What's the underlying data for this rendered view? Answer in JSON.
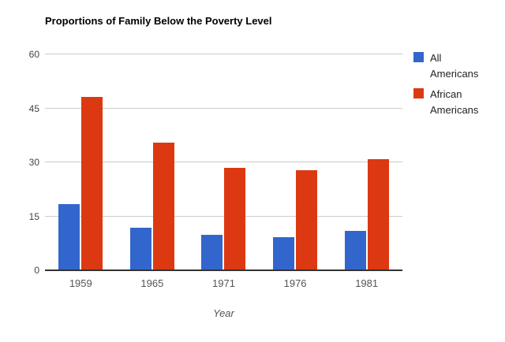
{
  "chart": {
    "title": "Proportions of Family Below the Poverty Level",
    "xlabel": "Year"
  },
  "chart_data": {
    "type": "bar",
    "title": "Proportions of Family Below the Poverty Level",
    "categories": [
      "1959",
      "1965",
      "1971",
      "1976",
      "1981"
    ],
    "series": [
      {
        "name": "All Americans",
        "color": "#3366CC",
        "values": [
          18.5,
          11.8,
          9.9,
          9.3,
          11.0
        ]
      },
      {
        "name": "African Americans",
        "color": "#DC3912",
        "values": [
          48.1,
          35.5,
          28.5,
          27.9,
          30.8
        ]
      }
    ],
    "xlabel": "Year",
    "ylabel": "",
    "ylim": [
      0,
      60
    ],
    "yticks": [
      0,
      15,
      30,
      45,
      60
    ],
    "grid": true,
    "legend_position": "right",
    "colors": {
      "gridline": "#cccccc",
      "axis": "#333333",
      "title_text": "#000000",
      "tick_text": "#555555",
      "background": "#ffffff"
    }
  }
}
